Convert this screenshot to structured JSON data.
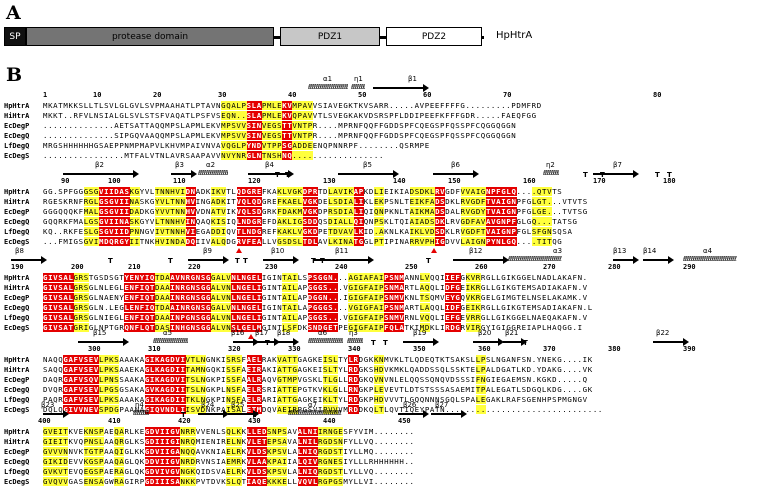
{
  "panel_a": {
    "letter": "A",
    "domains": {
      "sp": "SP",
      "protease": "protease domain",
      "pdz1": "PDZ1",
      "pdz2": "PDZ2"
    },
    "protein": "HpHtrA"
  },
  "panel_b": {
    "letter": "B",
    "species": [
      "HpHtrA",
      "HiHtrA",
      "EcDegP",
      "EcDegQ",
      "LfDegQ",
      "EcDegS"
    ],
    "blocks": [
      {
        "numbers": [
          "1",
          "10",
          "20",
          "30",
          "40",
          "50",
          "60",
          "70",
          "80"
        ],
        "ss": [
          "α1",
          "η1",
          "β1"
        ],
        "rows": [
          "MKATMKKSLLTLSVLGLGVLSVPMAAHATLPTAVNGQALPSLAPMLEKVMPAVVSIAVEGKTKVSARR.....AVPEEFFFFG.........PDMFRD",
          "MKKT..RFVLNSIALGLSVLSTSFVAQATLPSFVSEQN..SLAPMLEKVQPAVVTLSVEGKAKVDSRSPFLDDIPEEFKFFFGDR.....FAEQFGG",
          "..............AETSATTAQQMPSLAPMLEKVMPSVVSINVEGSTTVNTPR....MPRNFQQFFGDDSPFCQEGSPFQSSPFCQGGQGGN",
          "..............SIPGQVAAQQMPSLAPMLEKVMPSVVSINVEGSTTVNTPR....MPRNFQQFFGDDSPFCQEGSPFQSSPFCQGGQGGN",
          "MRGSHHHHHHGSAEPPNMPMAPVLKHVMPAIVNVAVQGLPYNDVTPPSGADDEENQPNNRPF........QSRMPE",
          "................MTFALVTNLAVRSAAPAVVNVYNRGLNTNSHNQ.................."
        ]
      },
      {
        "numbers": [
          "90",
          "100",
          "110",
          "120",
          "130",
          "140",
          "150",
          "160",
          "170",
          "180"
        ],
        "ss": [
          "β2",
          "β3",
          "α2",
          "β4",
          "β5",
          "β6",
          "η2",
          "β7"
        ],
        "rows": [
          "GG.SPFGGGSGVIIDASKGYVLTNNHVIDNADKIKVTLQDGREFKAKLVGKDPRTDLAVIKAPKDLIEIKIADSDKLRVGDFVVAIGNPFGLQ....QTVTS",
          "RGESKRNFRGLGSGVIINASKGYVLTNNHVINGADKITVQLQDGREFKAELVGKDELSDIALIKLEKPSNLTEIKFADSDKLRVGDFTVAIGNPFGLGT...VTVTS",
          "GGGQQQKFMALGSGVIIDADKGYVVTNNHVVDNATVIKVQLSDGRKFDAKMVGKDPRSDIALIQIQNPKNLTAIKMADSDALRVGDYTVAIGNPFGLGE...TVTSG",
          "GQQRKFMALGSGVIINASKGYVLTNNHVINQAQKISIQLNDGREFDAKLIGSDDQSDIALLQIQNPSKLTQIAIADSDKLRVGDFAVAVGNPFGLGQ...TATSG",
          "KQ..RKFESLGSGVIIDPNNGVIVTNNHVIEGADDIQVTLNDGREFKAKLVGKDPETDVAVLKID.AKNLKAIKLVDSDKLRVGDFTVAIGNPFGLSFGNSQSA",
          "...FMIGSGVIMDQRGYIITNKHVINDADQIIVALQDGRVFEALLVGSDSLTDLAVLKINATGGLPTIPINARRVPHIGDVVLAIGNPYNLGQ....TITQG"
        ]
      },
      {
        "numbers": [
          "190",
          "200",
          "210",
          "220",
          "230",
          "240",
          "250",
          "260",
          "270",
          "280",
          "290"
        ],
        "ss": [
          "β8",
          "β9",
          "β10",
          "β11",
          "β12",
          "α3",
          "β13",
          "β14",
          "α4"
        ],
        "rows": [
          "GIVSALGRSTGSDSGTYENYIQTDAAVNRGNSGGALVNLNGELIGINTAILSPSGGN...AGIAFAIPSNMANNLVQQIIEFGKVRRGLLGIKGGELNADLAKAFN.",
          "GIVSALGRSGLNLEGLENFIQTDAAINRGNSGGALVNLNGELIGINTAILAPGGGS...VGIGFAIPSNMARTLAQQLIDFGEIKRGLLGIKGTEMSADIAKAFN.V",
          "GIVSALGRSGLNAENYENFIQTDAAINRGNSGGALVNLNGELIGINTAILAPDGGN...IGIGFAIPSNMVKNLTSQMVEYGQVKRGELGIMGTELNSELAKAMK.V",
          "GIVSALGRSGLN.LEGLENFIQTDAAINRGNSGGALVNLNGELIGINTAILAPGGGS...VGIGFAIPSNMARTLAQQLIDFGEIKRGLLGIKGTEMSADIAKAFN.L",
          "GIVSALGRSGLNIEGLENFIQTDAAINPGNSGGALVNLNGELIGINTAILAPGGGS...VGIGFAIPSNMVRNLVQQLIEFGEVRRGLLGIKGGELNAEQAKAFN.V",
          "GIVSATGRIGLNPTGRQNFLQTDASINHGNSGGALVNSLGELMGINTLSFDKSNDGETPEGIGFAIPFQLATKIMDKLIRDGRVIRGYIGIGGREIAPLHAQGG.I"
        ]
      },
      {
        "numbers": [
          "300",
          "310",
          "320",
          "330",
          "340",
          "350",
          "360",
          "370",
          "380",
          "390"
        ],
        "ss": [
          "β15",
          "α5",
          "β16",
          "β17",
          "β18",
          "α6",
          "η3",
          "β19",
          "β20",
          "β21",
          "β22"
        ],
        "rows": [
          "NAQQGAFVSEVLPKSAAAKAGIKAGDVIVTLNGNKISRSFAELRAKVATTGAGKEISLTYLRDGKKNMVKLTLQDEQTKTSAKSLLPSLNGANFSN.YNEKG....IK",
          "SAQQGAFVSEVLPKSAAEKAGLKAGDIITAMNGQKISSFAEIRAKIATTGAGKEISLTYLRDGKSHDVKMKLQADDSSQLSSKTELPALDGATLKD.YDAKG....VK",
          "DAQRGAFVSQVLPNSSAAKAGIKAGDVITSLNGKPISSFAALRAQVGTMPVGSKLTLGLLRDGKQVNVNLELQQSSQNQVDSSSIFNGIEGAEMSN.KGKD.....Q",
          "DVQRGAFVSEVLPGSGSAKAGVKAGDIITSLNGKPLNSFAELRSRIATTEPGTKVKLGLLRNGKPLEVEVTLDTSTSSSASAEMITPALEGATLSDGQLKDG....GK",
          "PAQRGAFVSEVLPKSAAAKAGIKAGDIITKLNGKPINSFAELRARIATTGAGKEIKLTYLRDGKPHDVVVTLGQQNNNSGQLSPALEGAKLRAFSGENHPSPMGNGV",
          "DQLQGIVVNEVSPDGPAANAGIQVNDLIISVDNKPAISALETMDQVAEIRPGSVIPVVVMRDDKQLTLQVTIQEYPATN..............................."
        ]
      },
      {
        "numbers": [
          "400",
          "410",
          "420",
          "430",
          "440",
          "450"
        ],
        "ss": [
          "β23",
          "η4",
          "β24",
          "β25",
          "α7",
          "β26",
          "β27"
        ],
        "rows": [
          "GVEITKVEKNSPAEQARLKEGDVIIGVNRRVVENLSQLKKLLEDSNPSAVALNIIRNGESFYVIM........",
          "GIEITKVQPNSLAAQRGLKSGDIIIGINRQMIENIRELNKVLETEPSAVALNILRGDSNFYLLVQ........",
          "GVVVNNVKTGTPAAQIGLKKGDVIIGANQQAVKNIAELRKVLDSKPSVLALNIQRGDSTIYLLMQ........",
          "GIKIDEVVKGSPAAQAGLQKDDVIIGVNRDRVNSIAEMRKVLAAKPAIIALQIVRGNESIYLLLRHHHHHH..",
          "GVKVTEVQEGSPAERAGLQKGDVIVGVNGKQIDSVAELRKVLDSKPSVLALNIQRGDSTLYLLVQ........",
          "GVQVVGASENSAGWRAGIRPGDIIISANKKPVTDVKSLQTIAQEKKKELLVQVLRGPGSMYLLVI........"
        ]
      }
    ]
  }
}
